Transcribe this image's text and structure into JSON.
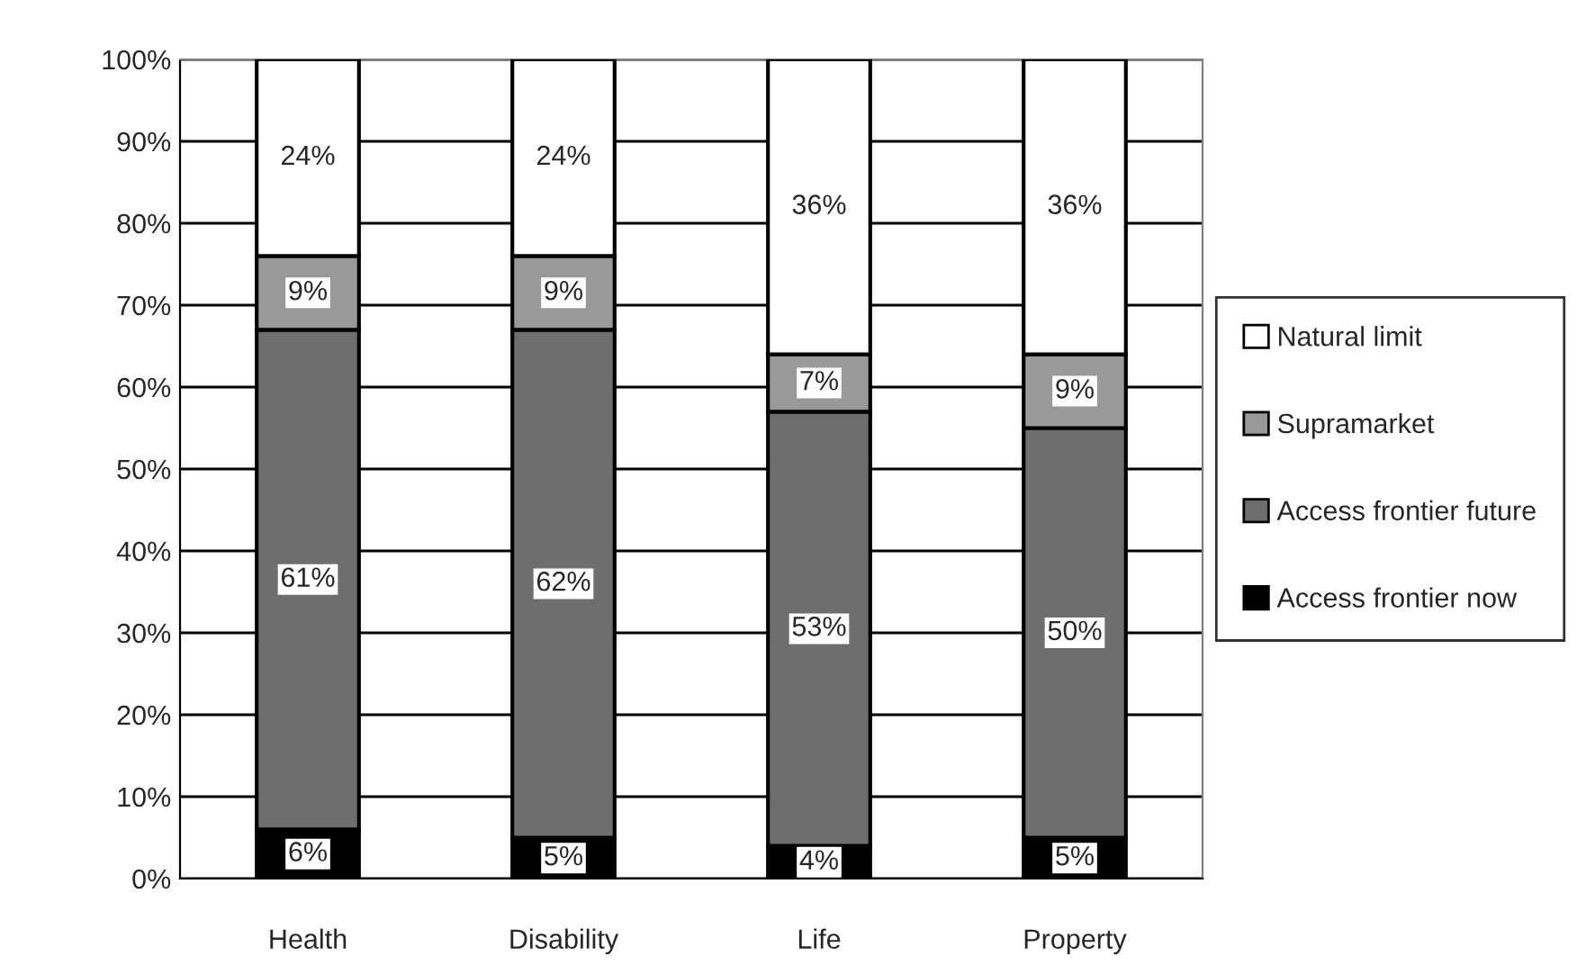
{
  "chart_data": {
    "type": "bar",
    "stacked": true,
    "categories": [
      "Health",
      "Disability",
      "Life",
      "Property"
    ],
    "series": [
      {
        "name": "Access frontier now",
        "color": "#000000",
        "values": [
          6,
          5,
          4,
          5
        ],
        "value_labels": [
          "6%",
          "5%",
          "4%",
          "5%"
        ]
      },
      {
        "name": "Access frontier future",
        "color": "#6e6e6e",
        "values": [
          61,
          62,
          53,
          50
        ],
        "value_labels": [
          "61%",
          "62%",
          "53%",
          "50%"
        ]
      },
      {
        "name": "Supramarket",
        "color": "#999999",
        "values": [
          9,
          9,
          7,
          9
        ],
        "value_labels": [
          "9%",
          "9%",
          "7%",
          "9%"
        ]
      },
      {
        "name": "Natural limit",
        "color": "#ffffff",
        "values": [
          24,
          24,
          36,
          36
        ],
        "value_labels": [
          "24%",
          "24%",
          "36%",
          "36%"
        ]
      }
    ],
    "ylim": [
      0,
      100
    ],
    "yticks": [
      {
        "value": 0,
        "label": "0%"
      },
      {
        "value": 10,
        "label": "10%"
      },
      {
        "value": 20,
        "label": "20%"
      },
      {
        "value": 30,
        "label": "30%"
      },
      {
        "value": 40,
        "label": "40%"
      },
      {
        "value": 50,
        "label": "50%"
      },
      {
        "value": 60,
        "label": "60%"
      },
      {
        "value": 70,
        "label": "70%"
      },
      {
        "value": 80,
        "label": "80%"
      },
      {
        "value": 90,
        "label": "90%"
      },
      {
        "value": 100,
        "label": "100%"
      }
    ],
    "grid": "y",
    "legend": "right"
  }
}
